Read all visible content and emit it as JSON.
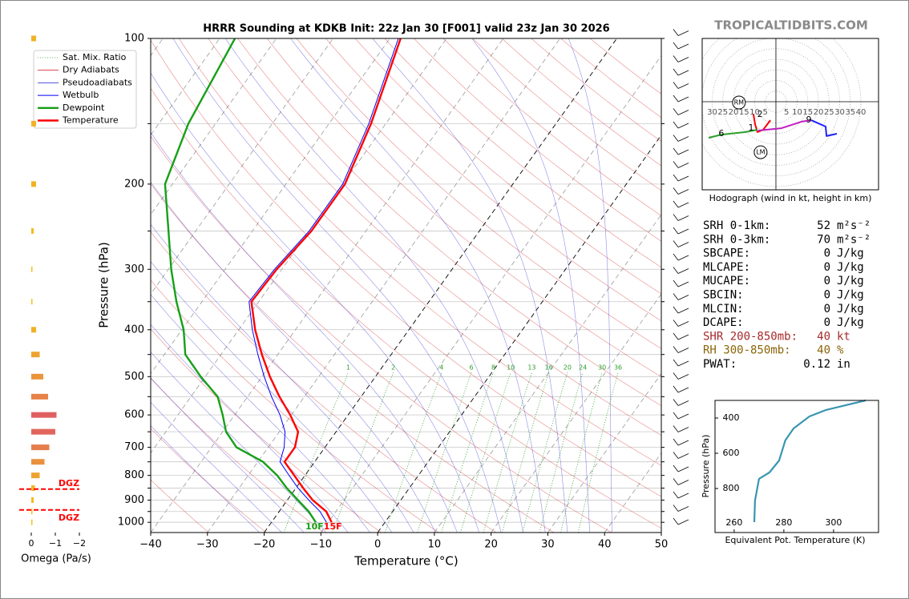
{
  "header": {
    "site": "TROPICALTIDBITS.COM"
  },
  "chart_data": [
    {
      "type": "skewt",
      "title": "HRRR Sounding at KDKB Init: 22z Jan 30 [F001] valid 23z Jan 30 2026",
      "xlabel": "Temperature (°C)",
      "ylabel": "Pressure (hPa)",
      "xlim": [
        -40,
        50
      ],
      "ylim": [
        1050,
        100
      ],
      "log_y": true,
      "xticks": [
        {
          "value": -40,
          "label": "−40"
        },
        {
          "value": -30,
          "label": "−30"
        },
        {
          "value": -20,
          "label": "−20"
        },
        {
          "value": -10,
          "label": "−10"
        },
        0,
        10,
        20,
        30,
        40,
        50
      ],
      "yticks": [
        100,
        200,
        300,
        400,
        500,
        600,
        700,
        800,
        900,
        1000
      ],
      "yminorticks": [
        150,
        250,
        350,
        450,
        550,
        650,
        750,
        850,
        950
      ],
      "isotherm_highlight": [
        -20,
        0
      ],
      "mixing_ratios": [
        1,
        2,
        4,
        6,
        8,
        10,
        13,
        16,
        20,
        24,
        30,
        36
      ],
      "background": [
        {
          "name": "Sat. Mix. Ratio",
          "color": "#2ca02c"
        },
        {
          "name": "Dry Adiabats",
          "color": "#d62728"
        },
        {
          "name": "Pseudoadiabats",
          "color": "#2020d0"
        }
      ],
      "pressure": [
        1000,
        950,
        900,
        850,
        800,
        750,
        700,
        650,
        600,
        550,
        500,
        450,
        400,
        350,
        300,
        250,
        200,
        150,
        100
      ],
      "series": [
        {
          "name": "Wetbulb",
          "color": "#0000ff",
          "values": [
            -10.3,
            -12.8,
            -16.2,
            -19.6,
            -22.8,
            -26.1,
            -27.2,
            -29.0,
            -32.0,
            -35.8,
            -39.6,
            -43.5,
            -47.6,
            -51.7,
            -51.3,
            -50.0,
            -50.0,
            -53.0,
            -58.5
          ]
        },
        {
          "name": "Dewpoint",
          "color": "#16a016",
          "surface_label": "10F",
          "values": [
            -12.2,
            -14.8,
            -18.1,
            -21.6,
            -24.9,
            -29.1,
            -35.6,
            -39.4,
            -42.1,
            -45.3,
            -50.8,
            -56.3,
            -59.7,
            -64.5,
            -69.5,
            -74.8,
            -81.3,
            -84.8,
            -87.3
          ]
        },
        {
          "name": "Temperature",
          "color": "#ff0000",
          "surface_label": "15F",
          "values": [
            -9.4,
            -11.7,
            -15.5,
            -18.7,
            -21.9,
            -25.3,
            -25.3,
            -26.7,
            -30.2,
            -34.4,
            -38.6,
            -42.8,
            -47.1,
            -51.3,
            -50.9,
            -49.6,
            -49.6,
            -52.6,
            -58.1
          ]
        }
      ],
      "legend": "upper left"
    },
    {
      "type": "omega",
      "xlabel": "Omega (Pa/s)",
      "xlim": [
        0.5,
        -2.2
      ],
      "xticks": [
        0,
        {
          "value": -1,
          "label": "−1"
        },
        {
          "value": -2,
          "label": "−2"
        }
      ],
      "pressure": [
        1000,
        950,
        900,
        850,
        800,
        750,
        700,
        650,
        600,
        550,
        500,
        450,
        400,
        350,
        300,
        250,
        200,
        150,
        100
      ],
      "values": [
        -0.05,
        -0.05,
        -0.1,
        -0.15,
        -0.35,
        -0.55,
        -0.75,
        -1.0,
        -1.05,
        -0.7,
        -0.5,
        -0.35,
        -0.2,
        -0.05,
        -0.05,
        -0.1,
        -0.2,
        -0.2,
        -0.2
      ],
      "colors": [
        "#f5c518",
        "#e06060"
      ],
      "dgz": {
        "label": "DGZ",
        "top": 854,
        "bottom": 943,
        "color": "#ff0000"
      }
    },
    {
      "type": "hodograph",
      "caption": "Hodograph (wind in kt, height in km)",
      "xlim": [
        -34.7,
        48.3
      ],
      "ylim": [
        -41.5,
        29.8
      ],
      "left_ticks": [
        30,
        25,
        20,
        15,
        10,
        5
      ],
      "right_ticks": [
        5,
        10,
        15,
        20,
        25,
        30,
        35,
        40
      ],
      "segments": [
        {
          "color": "#ff0000",
          "u": [
            -2.6,
            -6.0,
            -8.7,
            -9.8,
            -10.6
          ],
          "v": [
            -8.7,
            -13.2,
            -14.3,
            -10.6,
            -5.7
          ]
        },
        {
          "color": "#2ca02c",
          "u": [
            -8.7,
            -14.3,
            -25.7,
            -31.7
          ],
          "v": [
            -13.2,
            -14.3,
            -15.5,
            -17.0
          ]
        },
        {
          "color": "#c020c0",
          "u": [
            -8.3,
            2.6,
            12.1,
            16.6
          ],
          "v": [
            -13.6,
            -12.5,
            -9.4,
            -8.7
          ]
        },
        {
          "color": "#2020ff",
          "u": [
            16.6,
            23.4,
            23.8,
            28.7
          ],
          "v": [
            -8.7,
            -11.7,
            -16.2,
            -15.1
          ]
        }
      ],
      "labels": [
        {
          "label": "1",
          "u": -11.7,
          "v": -12.5
        },
        {
          "label": "2",
          "u": -7.5,
          "v": -6.0
        },
        {
          "label": "6",
          "u": -25.7,
          "v": -15.1
        },
        {
          "label": "9",
          "u": 15.5,
          "v": -8.7
        }
      ],
      "storm_motion": [
        {
          "label": "RM",
          "u": -17.4,
          "v": -0.4
        },
        {
          "label": "LM",
          "u": -7.2,
          "v": -23.8
        }
      ]
    },
    {
      "type": "line",
      "xlabel": "Equivalent Pot. Temperature (K)",
      "ylabel": "Pressure (hPa)",
      "xlim": [
        252.3,
        318.1
      ],
      "ylim": [
        1050,
        300
      ],
      "xticks": [
        260,
        280,
        300
      ],
      "yticks": [
        400,
        600,
        800
      ],
      "series": [
        {
          "color": "#3a96b0",
          "x": [
            268.1,
            268.4,
            270.0,
            274.2,
            278.1,
            280.6,
            283.9,
            290.3,
            296.8,
            312.9
          ],
          "values": [
            991,
            868,
            745,
            709,
            641,
            527,
            459,
            391,
            355,
            300
          ]
        }
      ]
    }
  ],
  "stats": [
    {
      "label": "SRH 0-1km:",
      "value": 52,
      "unit": "m²s⁻²"
    },
    {
      "label": "SRH 0-3km:",
      "value": 70,
      "unit": "m²s⁻²"
    },
    {
      "label": "SBCAPE:",
      "value": 0,
      "unit": "J/kg"
    },
    {
      "label": "MLCAPE:",
      "value": 0,
      "unit": "J/kg"
    },
    {
      "label": "MUCAPE:",
      "value": 0,
      "unit": "J/kg"
    },
    {
      "label": "SBCIN:",
      "value": 0,
      "unit": "J/kg"
    },
    {
      "label": "MLCIN:",
      "value": 0,
      "unit": "J/kg"
    },
    {
      "label": "DCAPE:",
      "value": 0,
      "unit": "J/kg"
    },
    {
      "label": "SHR 200-850mb:",
      "value": 40,
      "unit": "kt",
      "color": "#a52a2a"
    },
    {
      "label": "RH 300-850mb:",
      "value": 40,
      "unit": "%",
      "color": "#8b6508"
    },
    {
      "label": "PWAT:",
      "value": 0.12,
      "unit": "in"
    }
  ]
}
